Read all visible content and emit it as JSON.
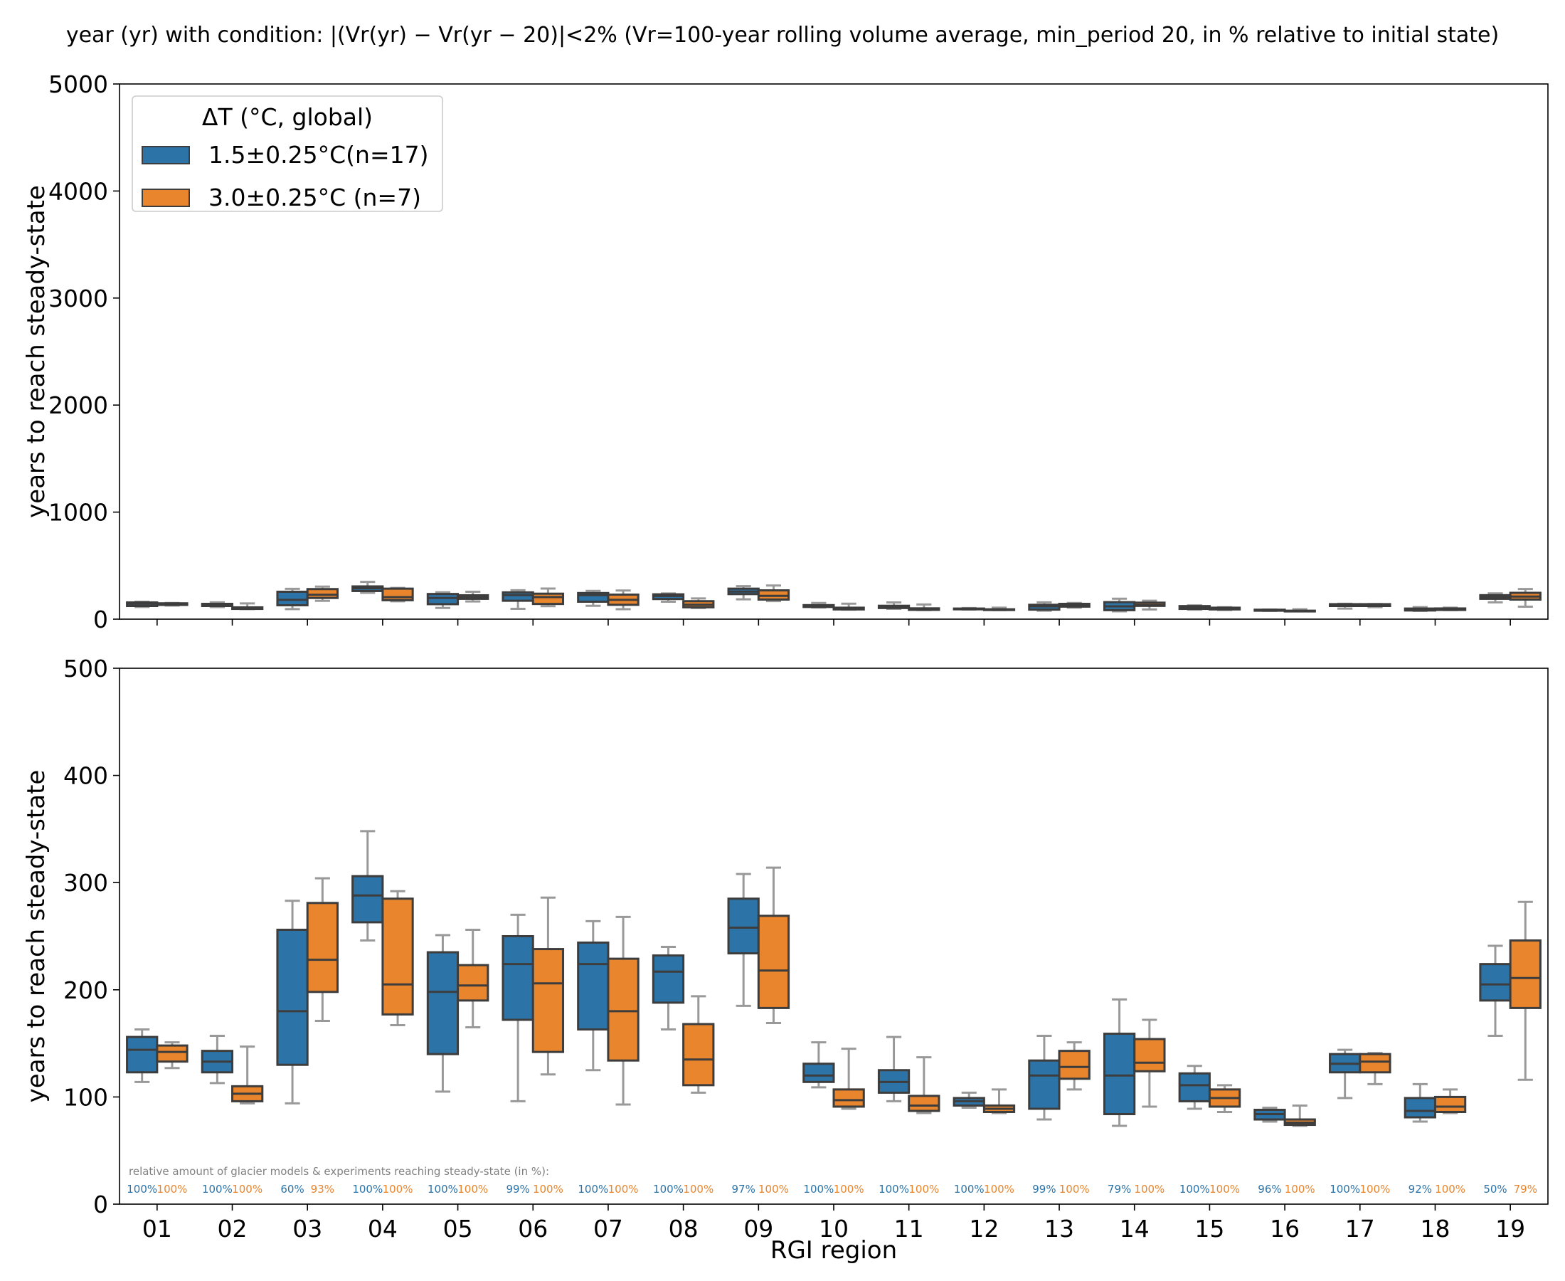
{
  "title": "year (yr) with condition:  |(Vr(yr) − Vr(yr − 20)|<2% (Vr=100-year rolling volume average, min_period 20, in % relative to initial state)",
  "chart_data": {
    "type": "boxplot",
    "xlabel": "RGI region",
    "ylabel": "years to reach steady-state",
    "categories": [
      "01",
      "02",
      "03",
      "04",
      "05",
      "06",
      "07",
      "08",
      "09",
      "10",
      "11",
      "12",
      "13",
      "14",
      "15",
      "16",
      "17",
      "18",
      "19"
    ],
    "legend": {
      "title": "ΔT (°C, global)",
      "placement": "top-left",
      "entries": [
        "1.5±0.25°C(n=17)",
        "3.0±0.25°C (n=7)"
      ]
    },
    "colors": {
      "s15": "#2c73a8",
      "s30": "#e8852d",
      "whisker": "#999999",
      "edge": "#3d3d3d"
    },
    "panels": [
      {
        "ylim": [
          0,
          5000
        ],
        "yticks": [
          0,
          1000,
          2000,
          3000,
          4000,
          5000
        ],
        "show_xticklabels": false,
        "show_legend": true
      },
      {
        "ylim": [
          0,
          500
        ],
        "yticks": [
          0,
          100,
          200,
          300,
          400,
          500
        ],
        "show_xticklabels": true,
        "show_annotation": true
      }
    ],
    "annotation_title": "relative amount of glacier models & experiments reaching steady-state (in %):",
    "series": [
      {
        "name": "1.5±0.25°C(n=17)",
        "key": "s15",
        "boxes": [
          {
            "wlo": 114,
            "q1": 123,
            "med": 144,
            "q3": 156,
            "whi": 163
          },
          {
            "wlo": 113,
            "q1": 123,
            "med": 133,
            "q3": 143,
            "whi": 157
          },
          {
            "wlo": 94,
            "q1": 130,
            "med": 180,
            "q3": 256,
            "whi": 283
          },
          {
            "wlo": 246,
            "q1": 263,
            "med": 288,
            "q3": 306,
            "whi": 348
          },
          {
            "wlo": 105,
            "q1": 140,
            "med": 198,
            "q3": 235,
            "whi": 251
          },
          {
            "wlo": 96,
            "q1": 172,
            "med": 224,
            "q3": 250,
            "whi": 270
          },
          {
            "wlo": 125,
            "q1": 163,
            "med": 224,
            "q3": 244,
            "whi": 264
          },
          {
            "wlo": 163,
            "q1": 188,
            "med": 217,
            "q3": 232,
            "whi": 240
          },
          {
            "wlo": 185,
            "q1": 234,
            "med": 258,
            "q3": 285,
            "whi": 308
          },
          {
            "wlo": 109,
            "q1": 114,
            "med": 120,
            "q3": 131,
            "whi": 151
          },
          {
            "wlo": 96,
            "q1": 104,
            "med": 114,
            "q3": 125,
            "whi": 156
          },
          {
            "wlo": 90,
            "q1": 92,
            "med": 96,
            "q3": 99,
            "whi": 104
          },
          {
            "wlo": 79,
            "q1": 89,
            "med": 120,
            "q3": 134,
            "whi": 157
          },
          {
            "wlo": 73,
            "q1": 84,
            "med": 120,
            "q3": 159,
            "whi": 191
          },
          {
            "wlo": 89,
            "q1": 96,
            "med": 111,
            "q3": 122,
            "whi": 129
          },
          {
            "wlo": 77,
            "q1": 79,
            "med": 84,
            "q3": 88,
            "whi": 90
          },
          {
            "wlo": 99,
            "q1": 123,
            "med": 131,
            "q3": 140,
            "whi": 144
          },
          {
            "wlo": 77,
            "q1": 81,
            "med": 87,
            "q3": 99,
            "whi": 112
          },
          {
            "wlo": 157,
            "q1": 190,
            "med": 205,
            "q3": 224,
            "whi": 241
          }
        ],
        "pct": [
          "100%",
          "100%",
          "60%",
          "100%",
          "100%",
          "99%",
          "100%",
          "100%",
          "97%",
          "100%",
          "100%",
          "100%",
          "99%",
          "79%",
          "100%",
          "96%",
          "100%",
          "92%",
          "50%"
        ]
      },
      {
        "name": "3.0±0.25°C (n=7)",
        "key": "s30",
        "boxes": [
          {
            "wlo": 127,
            "q1": 133,
            "med": 142,
            "q3": 148,
            "whi": 151
          },
          {
            "wlo": 94,
            "q1": 96,
            "med": 103,
            "q3": 110,
            "whi": 147
          },
          {
            "wlo": 171,
            "q1": 198,
            "med": 228,
            "q3": 281,
            "whi": 304
          },
          {
            "wlo": 167,
            "q1": 177,
            "med": 205,
            "q3": 285,
            "whi": 292
          },
          {
            "wlo": 165,
            "q1": 190,
            "med": 204,
            "q3": 223,
            "whi": 256
          },
          {
            "wlo": 121,
            "q1": 142,
            "med": 206,
            "q3": 238,
            "whi": 286
          },
          {
            "wlo": 93,
            "q1": 134,
            "med": 180,
            "q3": 229,
            "whi": 268
          },
          {
            "wlo": 104,
            "q1": 111,
            "med": 135,
            "q3": 168,
            "whi": 194
          },
          {
            "wlo": 169,
            "q1": 183,
            "med": 218,
            "q3": 269,
            "whi": 314
          },
          {
            "wlo": 89,
            "q1": 91,
            "med": 97,
            "q3": 107,
            "whi": 145
          },
          {
            "wlo": 85,
            "q1": 87,
            "med": 92,
            "q3": 101,
            "whi": 137
          },
          {
            "wlo": 85,
            "q1": 86,
            "med": 89,
            "q3": 92,
            "whi": 107
          },
          {
            "wlo": 107,
            "q1": 117,
            "med": 128,
            "q3": 143,
            "whi": 151
          },
          {
            "wlo": 91,
            "q1": 124,
            "med": 132,
            "q3": 154,
            "whi": 172
          },
          {
            "wlo": 86,
            "q1": 91,
            "med": 99,
            "q3": 107,
            "whi": 111
          },
          {
            "wlo": 73,
            "q1": 74,
            "med": 76,
            "q3": 79,
            "whi": 92
          },
          {
            "wlo": 112,
            "q1": 123,
            "med": 133,
            "q3": 140,
            "whi": 141
          },
          {
            "wlo": 85,
            "q1": 86,
            "med": 91,
            "q3": 100,
            "whi": 107
          },
          {
            "wlo": 116,
            "q1": 183,
            "med": 211,
            "q3": 246,
            "whi": 282
          }
        ],
        "pct": [
          "100%",
          "100%",
          "93%",
          "100%",
          "100%",
          "100%",
          "100%",
          "100%",
          "100%",
          "100%",
          "100%",
          "100%",
          "100%",
          "100%",
          "100%",
          "100%",
          "100%",
          "100%",
          "79%"
        ]
      }
    ]
  }
}
